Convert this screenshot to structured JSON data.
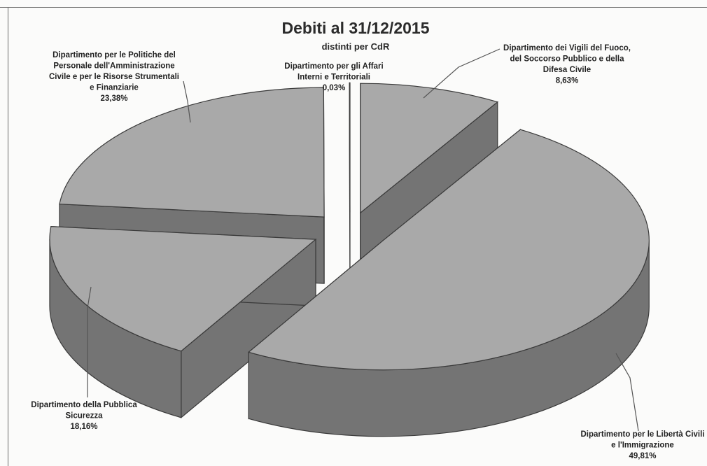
{
  "chart_data": {
    "type": "pie",
    "title": "Debiti al 31/12/2015",
    "subtitle": "distinti per CdR",
    "slices": [
      {
        "label_lines": [
          "Dipartimento dei Vigili del Fuoco,",
          "del Soccorso Pubblico e della",
          "Difesa Civile"
        ],
        "value": 8.63,
        "value_label": "8,63%"
      },
      {
        "label_lines": [
          "Dipartimento per le Libertà Civili",
          "e l'Immigrazione"
        ],
        "value": 49.81,
        "value_label": "49,81%"
      },
      {
        "label_lines": [
          "Dipartimento della Pubblica",
          "Sicurezza"
        ],
        "value": 18.16,
        "value_label": "18,16%"
      },
      {
        "label_lines": [
          "Dipartimento per le Politiche del",
          "Personale dell'Amministrazione",
          "Civile e per le Risorse Strumentali",
          "e Finanziarie"
        ],
        "value": 23.38,
        "value_label": "23,38%"
      },
      {
        "label_lines": [
          "Dipartimento per gli Affari",
          "Interni e Territoriali"
        ],
        "value": 0.03,
        "value_label": "0,03%"
      }
    ],
    "colors": {
      "top": "#a9a9a9",
      "side": "#747474",
      "edge": "#3a3a3a",
      "leader": "#555555",
      "text": "#222222"
    }
  }
}
